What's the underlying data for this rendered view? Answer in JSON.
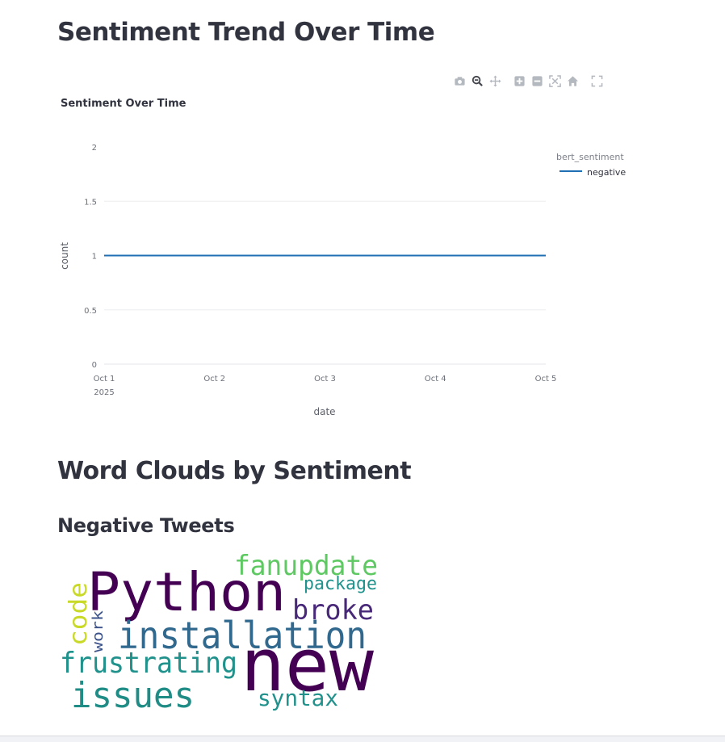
{
  "page": {
    "trend_heading": "Sentiment Trend Over Time",
    "wordcloud_heading": "Word Clouds by Sentiment",
    "negative_heading": "Negative Tweets"
  },
  "modebar": [
    {
      "name": "camera-icon",
      "icon": "camera"
    },
    {
      "name": "zoom-icon",
      "icon": "zoom"
    },
    {
      "name": "pan-icon",
      "icon": "pan"
    },
    {
      "name": "zoom-in-icon",
      "icon": "plus"
    },
    {
      "name": "zoom-out-icon",
      "icon": "minus"
    },
    {
      "name": "autoscale-icon",
      "icon": "autoscale"
    },
    {
      "name": "reset-axes-icon",
      "icon": "home"
    },
    {
      "name": "fullscreen-icon",
      "icon": "fullscreen"
    }
  ],
  "chart_data": {
    "type": "line",
    "title": "Sentiment Over Time",
    "xlabel": "date",
    "ylabel": "count",
    "x": [
      "2025-10-01",
      "2025-10-02",
      "2025-10-03",
      "2025-10-04",
      "2025-10-05"
    ],
    "x_tick_labels": [
      "Oct 1",
      "Oct 2",
      "Oct 3",
      "Oct 4",
      "Oct 5"
    ],
    "x_tick_year": "2025",
    "y_ticks": [
      "0",
      "0.5",
      "1",
      "1.5",
      "2"
    ],
    "ylim": [
      0,
      2
    ],
    "grid": true,
    "legend_title": "bert_sentiment",
    "legend_position": "top-right",
    "series": [
      {
        "name": "negative",
        "color": "#1f6fb4",
        "values": [
          1,
          1,
          1,
          1,
          1
        ]
      }
    ]
  },
  "wordcloud": {
    "words": [
      {
        "text": "Python",
        "color": "#440154"
      },
      {
        "text": "new",
        "color": "#440154"
      },
      {
        "text": "fanupdate",
        "color": "#5ec962"
      },
      {
        "text": "package",
        "color": "#21918c"
      },
      {
        "text": "broke",
        "color": "#482878"
      },
      {
        "text": "installation",
        "color": "#31688e"
      },
      {
        "text": "code",
        "color": "#c9d927"
      },
      {
        "text": "work",
        "color": "#3b528b"
      },
      {
        "text": "frustrating",
        "color": "#21918c"
      },
      {
        "text": "issues",
        "color": "#1f8c86"
      },
      {
        "text": "syntax",
        "color": "#21918c"
      }
    ]
  }
}
